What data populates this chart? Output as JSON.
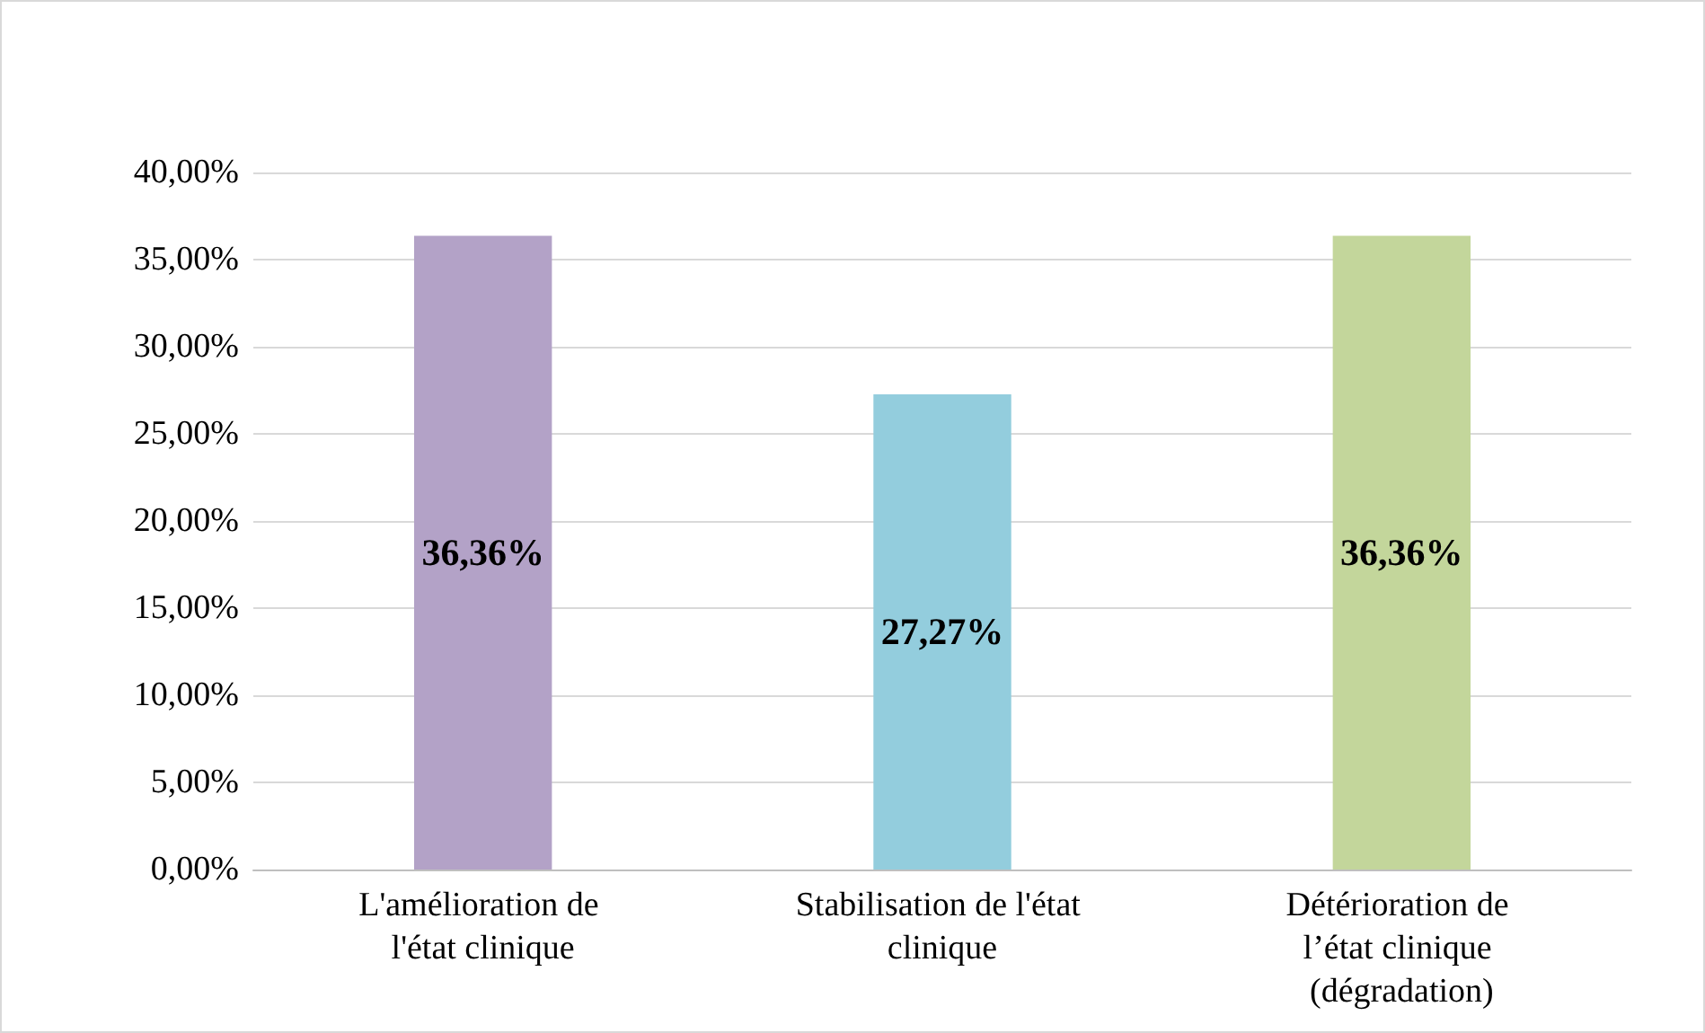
{
  "chart_data": {
    "type": "bar",
    "categories": [
      "L'amélioration de l'état clinique",
      "Stabilisation de l'état clinique",
      "Détérioration de l’état clinique (dégradation)"
    ],
    "values": [
      36.36,
      27.27,
      36.36
    ],
    "colors": [
      "#b3a2c7",
      "#93cddd",
      "#c3d69b"
    ],
    "value_labels": [
      "36,36%",
      "27,27%",
      "36,36%"
    ],
    "ylim": [
      0,
      40
    ],
    "yticks": [
      {
        "value": 0,
        "label": "0,00%"
      },
      {
        "value": 5,
        "label": "5,00%"
      },
      {
        "value": 10,
        "label": "10,00%"
      },
      {
        "value": 15,
        "label": "15,00%"
      },
      {
        "value": 20,
        "label": "20,00%"
      },
      {
        "value": 25,
        "label": "25,00%"
      },
      {
        "value": 30,
        "label": "30,00%"
      },
      {
        "value": 35,
        "label": "35,00%"
      },
      {
        "value": 40,
        "label": "40,00%"
      }
    ],
    "grid": "y"
  }
}
